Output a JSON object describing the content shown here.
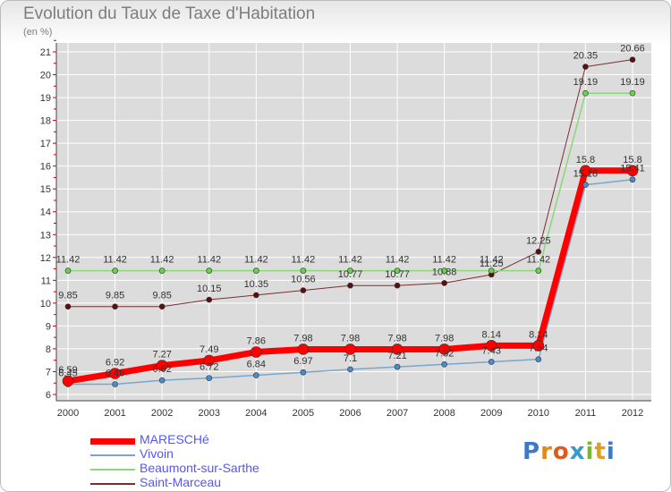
{
  "title": "Evolution du Taux de Taxe d'Habitation",
  "subtitle": "(en %)",
  "logo": "Proxiti",
  "chart_data": {
    "type": "line",
    "x": [
      "2000",
      "2001",
      "2002",
      "2003",
      "2004",
      "2005",
      "2006",
      "2007",
      "2008",
      "2009",
      "2010",
      "2011",
      "2012"
    ],
    "ylim": [
      6,
      21
    ],
    "yticks": [
      "6",
      "7",
      "8",
      "9",
      "10",
      "11",
      "12",
      "13",
      "14",
      "15",
      "16",
      "17",
      "18",
      "19",
      "20",
      "21"
    ],
    "grid": true,
    "legend_position": "bottom-left",
    "series": [
      {
        "name": "Saint-Marceau",
        "color": "#7a2e2e",
        "marker": "#5a1010",
        "width": 1,
        "values": [
          9.85,
          9.85,
          9.85,
          10.15,
          10.35,
          10.56,
          10.77,
          10.77,
          10.88,
          11.25,
          12.25,
          20.35,
          20.66
        ],
        "labels": [
          "9.85",
          "9.85",
          "9.85",
          "10.15",
          "10.35",
          "10.56",
          "10.77",
          "10.77",
          "10.88",
          "11.25",
          "12.25",
          "20.35",
          "20.66"
        ]
      },
      {
        "name": "Beaumont-sur-Sarthe",
        "color": "#8ad878",
        "marker": "#6cd050",
        "width": 1.5,
        "values": [
          11.42,
          11.42,
          11.42,
          11.42,
          11.42,
          11.42,
          11.42,
          11.42,
          11.42,
          11.42,
          11.42,
          19.19,
          19.19
        ],
        "labels": [
          "11.42",
          "11.42",
          "11.42",
          "11.42",
          "11.42",
          "11.42",
          "11.42",
          "11.42",
          "11.42",
          "11.42",
          "11.42",
          "19.19",
          "19.19"
        ]
      },
      {
        "name": "Vivoin",
        "color": "#7aa6cc",
        "marker": "#4a8ccc",
        "width": 1.5,
        "values": [
          6.45,
          6.45,
          6.62,
          6.72,
          6.84,
          6.97,
          7.1,
          7.21,
          7.32,
          7.43,
          7.54,
          15.18,
          15.41
        ],
        "labels": [
          "6.45",
          "6.45",
          "6.62",
          "6.72",
          "6.84",
          "6.97",
          "7.1",
          "7.21",
          "7.32",
          "7.43",
          "7.54",
          "15.18",
          "15.41"
        ]
      },
      {
        "name": "MARESCHé",
        "color": "#ff0000",
        "marker": "#ff0000",
        "width": 7,
        "values": [
          6.59,
          6.92,
          7.27,
          7.49,
          7.86,
          7.98,
          7.98,
          7.98,
          7.98,
          8.14,
          8.14,
          15.8,
          15.8
        ],
        "labels": [
          "6.59",
          "6.92",
          "7.27",
          "7.49",
          "7.86",
          "7.98",
          "7.98",
          "7.98",
          "7.98",
          "8.14",
          "8.14",
          "15.8",
          "15.8"
        ]
      }
    ]
  },
  "legend": [
    {
      "name": "MARESCHé",
      "color": "#ff0000",
      "thickness": 7,
      "text_color": "#5555ff"
    },
    {
      "name": "Vivoin",
      "color": "#7aa6cc",
      "thickness": 2,
      "text_color": "#5555ff"
    },
    {
      "name": "Beaumont-sur-Sarthe",
      "color": "#8ad878",
      "thickness": 2,
      "text_color": "#5555ff"
    },
    {
      "name": "Saint-Marceau",
      "color": "#7a2e2e",
      "thickness": 2,
      "text_color": "#5555ff"
    }
  ],
  "colors": {
    "grid": "#ffffff",
    "axis": "#444444",
    "tick_text": "#333333",
    "label_text": "#333333"
  }
}
